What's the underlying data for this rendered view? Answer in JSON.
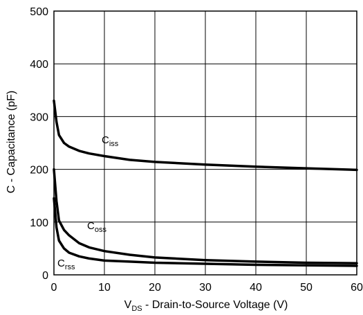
{
  "chart_data": {
    "type": "line",
    "xlabel": {
      "prefix": "V",
      "sub": "DS",
      "rest": " - Drain-to-Source Voltage (V)"
    },
    "ylabel": "C - Capacitance (pF)",
    "xlim": [
      0,
      60
    ],
    "ylim": [
      0,
      500
    ],
    "xticks": [
      "0",
      "10",
      "20",
      "30",
      "40",
      "50",
      "60"
    ],
    "yticks": [
      "0",
      "100",
      "200",
      "300",
      "400",
      "500"
    ],
    "grid": true,
    "series": [
      {
        "name": "C_iss",
        "label_main": "C",
        "label_sub": "iss",
        "x": [
          0,
          0.5,
          1,
          2,
          3,
          5,
          7,
          10,
          15,
          20,
          30,
          40,
          50,
          60
        ],
        "y": [
          330,
          290,
          265,
          250,
          243,
          235,
          230,
          225,
          218,
          214,
          209,
          205,
          202,
          199
        ]
      },
      {
        "name": "C_oss",
        "label_main": "C",
        "label_sub": "oss",
        "x": [
          0,
          0.5,
          1,
          2,
          3,
          5,
          7,
          10,
          15,
          20,
          30,
          40,
          50,
          60
        ],
        "y": [
          200,
          140,
          103,
          85,
          75,
          60,
          52,
          45,
          38,
          33,
          28,
          25,
          23,
          22
        ]
      },
      {
        "name": "C_rss",
        "label_main": "C",
        "label_sub": "rss",
        "x": [
          0,
          0.5,
          1,
          2,
          3,
          5,
          7,
          10,
          15,
          20,
          30,
          40,
          50,
          60
        ],
        "y": [
          145,
          90,
          65,
          50,
          42,
          35,
          31,
          27,
          25,
          23,
          21,
          19,
          18,
          17
        ]
      }
    ]
  }
}
